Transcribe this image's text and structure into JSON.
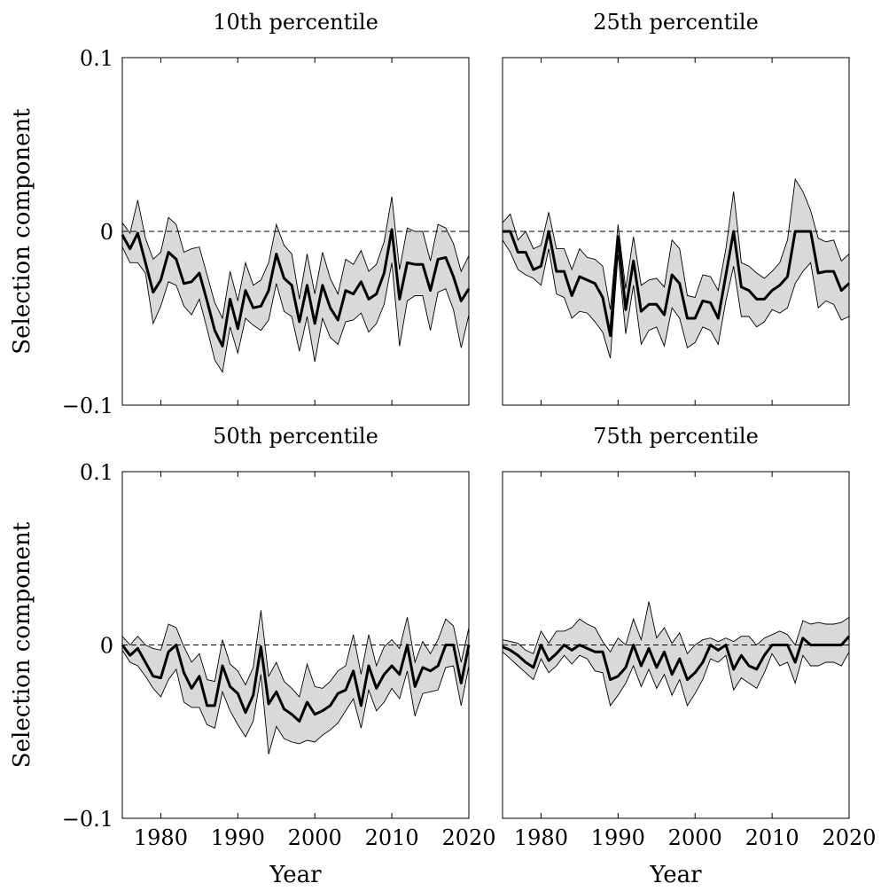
{
  "chart_data": [
    {
      "type": "line",
      "title": "10th percentile",
      "xlabel": "",
      "ylabel": "Selection component",
      "xlim": [
        1975,
        2020
      ],
      "ylim": [
        -0.1,
        0.1
      ],
      "xticks": [
        1980,
        1990,
        2000,
        2010,
        2020
      ],
      "yticks": [
        -0.1,
        0,
        0.1
      ],
      "ytick_labels": [
        "−0.1",
        "0",
        "0.1"
      ],
      "xtick_labels": [],
      "reference_line": 0,
      "x": [
        1975,
        1976,
        1977,
        1978,
        1979,
        1980,
        1981,
        1982,
        1983,
        1984,
        1985,
        1986,
        1987,
        1988,
        1989,
        1990,
        1991,
        1992,
        1993,
        1994,
        1995,
        1996,
        1997,
        1998,
        1999,
        2000,
        2001,
        2002,
        2003,
        2004,
        2005,
        2006,
        2007,
        2008,
        2009,
        2010,
        2011,
        2012,
        2013,
        2014,
        2015,
        2016,
        2017,
        2018,
        2019,
        2020
      ],
      "estimate": [
        -0.002,
        -0.01,
        -0.001,
        -0.018,
        -0.035,
        -0.028,
        -0.012,
        -0.016,
        -0.03,
        -0.029,
        -0.024,
        -0.04,
        -0.057,
        -0.066,
        -0.039,
        -0.056,
        -0.034,
        -0.044,
        -0.043,
        -0.034,
        -0.013,
        -0.027,
        -0.031,
        -0.052,
        -0.031,
        -0.053,
        -0.031,
        -0.044,
        -0.051,
        -0.034,
        -0.036,
        -0.029,
        -0.039,
        -0.036,
        -0.024,
        0.001,
        -0.039,
        -0.018,
        -0.019,
        -0.019,
        -0.034,
        -0.016,
        -0.015,
        -0.026,
        -0.04,
        -0.033
      ],
      "upper": [
        0.005,
        -0.001,
        0.018,
        -0.004,
        -0.016,
        -0.012,
        0.008,
        0.004,
        -0.012,
        -0.01,
        -0.009,
        -0.025,
        -0.041,
        -0.05,
        -0.023,
        -0.04,
        -0.018,
        -0.031,
        -0.028,
        -0.018,
        0.004,
        -0.008,
        -0.013,
        -0.039,
        -0.013,
        -0.036,
        -0.012,
        -0.027,
        -0.036,
        -0.016,
        -0.019,
        -0.011,
        -0.023,
        -0.019,
        -0.006,
        0.02,
        -0.022,
        0.002,
        0,
        0,
        -0.017,
        0.004,
        0.002,
        -0.007,
        -0.023,
        -0.014
      ],
      "lower": [
        -0.009,
        -0.018,
        -0.018,
        -0.024,
        -0.053,
        -0.043,
        -0.029,
        -0.031,
        -0.043,
        -0.048,
        -0.039,
        -0.056,
        -0.074,
        -0.081,
        -0.055,
        -0.07,
        -0.05,
        -0.054,
        -0.057,
        -0.051,
        -0.03,
        -0.046,
        -0.049,
        -0.069,
        -0.049,
        -0.075,
        -0.05,
        -0.061,
        -0.065,
        -0.052,
        -0.051,
        -0.047,
        -0.058,
        -0.053,
        -0.042,
        -0.018,
        -0.066,
        -0.04,
        -0.037,
        -0.037,
        -0.057,
        -0.035,
        -0.033,
        -0.045,
        -0.067,
        -0.048
      ]
    },
    {
      "type": "line",
      "title": "25th percentile",
      "xlabel": "",
      "ylabel": "",
      "xlim": [
        1975,
        2020
      ],
      "ylim": [
        -0.1,
        0.1
      ],
      "xticks": [
        1980,
        1990,
        2000,
        2010,
        2020
      ],
      "yticks": [
        -0.1,
        0,
        0.1
      ],
      "ytick_labels": [],
      "xtick_labels": [],
      "reference_line": 0,
      "x": [
        1975,
        1976,
        1977,
        1978,
        1979,
        1980,
        1981,
        1982,
        1983,
        1984,
        1985,
        1986,
        1987,
        1988,
        1989,
        1990,
        1991,
        1992,
        1993,
        1994,
        1995,
        1996,
        1997,
        1998,
        1999,
        2000,
        2001,
        2002,
        2003,
        2004,
        2005,
        2006,
        2007,
        2008,
        2009,
        2010,
        2011,
        2012,
        2013,
        2014,
        2015,
        2016,
        2017,
        2018,
        2019,
        2020
      ],
      "estimate": [
        0,
        0,
        -0.012,
        -0.012,
        -0.022,
        -0.02,
        0,
        -0.023,
        -0.023,
        -0.037,
        -0.026,
        -0.028,
        -0.03,
        -0.038,
        -0.06,
        -0.003,
        -0.045,
        -0.017,
        -0.046,
        -0.042,
        -0.042,
        -0.048,
        -0.025,
        -0.03,
        -0.05,
        -0.05,
        -0.04,
        -0.041,
        -0.05,
        -0.025,
        0,
        -0.032,
        -0.034,
        -0.039,
        -0.039,
        -0.034,
        -0.031,
        -0.026,
        0,
        0,
        0,
        -0.024,
        -0.023,
        -0.023,
        -0.034,
        -0.03
      ],
      "upper": [
        0.005,
        0.01,
        -0.005,
        0,
        -0.01,
        -0.008,
        0.011,
        -0.01,
        -0.01,
        -0.022,
        -0.01,
        -0.015,
        -0.016,
        -0.02,
        -0.045,
        0.004,
        -0.033,
        -0.003,
        -0.031,
        -0.028,
        -0.027,
        -0.032,
        -0.005,
        -0.01,
        -0.037,
        -0.038,
        -0.025,
        -0.026,
        -0.034,
        -0.01,
        0.023,
        -0.018,
        -0.02,
        -0.024,
        -0.027,
        -0.023,
        -0.018,
        -0.005,
        0.03,
        0.023,
        0.012,
        -0.004,
        -0.006,
        -0.005,
        -0.017,
        -0.013
      ],
      "lower": [
        -0.005,
        -0.012,
        -0.022,
        -0.025,
        -0.027,
        -0.031,
        -0.01,
        -0.036,
        -0.038,
        -0.05,
        -0.046,
        -0.047,
        -0.052,
        -0.058,
        -0.073,
        -0.013,
        -0.059,
        -0.031,
        -0.065,
        -0.057,
        -0.055,
        -0.066,
        -0.044,
        -0.05,
        -0.067,
        -0.064,
        -0.055,
        -0.057,
        -0.065,
        -0.04,
        -0.02,
        -0.049,
        -0.049,
        -0.055,
        -0.052,
        -0.045,
        -0.047,
        -0.044,
        -0.03,
        -0.023,
        -0.018,
        -0.044,
        -0.04,
        -0.042,
        -0.051,
        -0.049
      ]
    },
    {
      "type": "line",
      "title": "50th percentile",
      "xlabel": "Year",
      "ylabel": "Selection component",
      "xlim": [
        1975,
        2020
      ],
      "ylim": [
        -0.1,
        0.1
      ],
      "xticks": [
        1980,
        1990,
        2000,
        2010,
        2020
      ],
      "yticks": [
        -0.1,
        0,
        0.1
      ],
      "ytick_labels": [
        "−0.1",
        "0",
        "0.1"
      ],
      "xtick_labels": [
        "1980",
        "1990",
        "2000",
        "2010",
        "2020"
      ],
      "reference_line": 0,
      "x": [
        1975,
        1976,
        1977,
        1978,
        1979,
        1980,
        1981,
        1982,
        1983,
        1984,
        1985,
        1986,
        1987,
        1988,
        1989,
        1990,
        1991,
        1992,
        1993,
        1994,
        1995,
        1996,
        1997,
        1998,
        1999,
        2000,
        2001,
        2002,
        2003,
        2004,
        2005,
        2006,
        2007,
        2008,
        2009,
        2010,
        2011,
        2012,
        2013,
        2014,
        2015,
        2016,
        2017,
        2018,
        2019,
        2020
      ],
      "estimate": [
        0,
        -0.006,
        -0.002,
        -0.01,
        -0.018,
        -0.019,
        -0.004,
        0,
        -0.016,
        -0.025,
        -0.018,
        -0.035,
        -0.035,
        -0.012,
        -0.024,
        -0.028,
        -0.039,
        -0.029,
        -0.001,
        -0.034,
        -0.027,
        -0.037,
        -0.04,
        -0.044,
        -0.033,
        -0.04,
        -0.038,
        -0.035,
        -0.028,
        -0.026,
        -0.015,
        -0.035,
        -0.012,
        -0.025,
        -0.017,
        -0.012,
        -0.017,
        0,
        -0.024,
        -0.013,
        -0.015,
        -0.012,
        0,
        0,
        -0.022,
        0
      ],
      "upper": [
        0.005,
        0,
        0.005,
        0,
        -0.002,
        -0.003,
        0.012,
        0.01,
        -0.001,
        -0.01,
        -0.005,
        -0.02,
        -0.021,
        0.003,
        -0.011,
        -0.015,
        -0.023,
        -0.013,
        0.02,
        -0.018,
        -0.01,
        -0.021,
        -0.025,
        -0.03,
        -0.011,
        -0.024,
        -0.025,
        -0.021,
        -0.015,
        -0.012,
        0.006,
        -0.017,
        0.006,
        -0.012,
        -0.001,
        0.003,
        -0.002,
        0.016,
        -0.01,
        0.002,
        -0.005,
        0.003,
        0.015,
        0.011,
        -0.01,
        0.01
      ],
      "lower": [
        -0.003,
        -0.01,
        -0.012,
        -0.018,
        -0.025,
        -0.03,
        -0.02,
        -0.014,
        -0.033,
        -0.036,
        -0.036,
        -0.046,
        -0.048,
        -0.027,
        -0.038,
        -0.046,
        -0.053,
        -0.044,
        -0.017,
        -0.063,
        -0.047,
        -0.054,
        -0.056,
        -0.057,
        -0.055,
        -0.056,
        -0.052,
        -0.049,
        -0.045,
        -0.038,
        -0.031,
        -0.048,
        -0.026,
        -0.038,
        -0.033,
        -0.025,
        -0.031,
        -0.015,
        -0.041,
        -0.028,
        -0.027,
        -0.026,
        -0.013,
        -0.012,
        -0.035,
        -0.012
      ]
    },
    {
      "type": "line",
      "title": "75th percentile",
      "xlabel": "Year",
      "ylabel": "",
      "xlim": [
        1975,
        2020
      ],
      "ylim": [
        -0.1,
        0.1
      ],
      "xticks": [
        1980,
        1990,
        2000,
        2010,
        2020
      ],
      "yticks": [
        -0.1,
        0,
        0.1
      ],
      "ytick_labels": [],
      "xtick_labels": [
        "1980",
        "1990",
        "2000",
        "2010",
        "2020"
      ],
      "reference_line": 0,
      "x": [
        1975,
        1976,
        1977,
        1978,
        1979,
        1980,
        1981,
        1982,
        1983,
        1984,
        1985,
        1986,
        1987,
        1988,
        1989,
        1990,
        1991,
        1992,
        1993,
        1994,
        1995,
        1996,
        1997,
        1998,
        1999,
        2000,
        2001,
        2002,
        2003,
        2004,
        2005,
        2006,
        2007,
        2008,
        2009,
        2010,
        2011,
        2012,
        2013,
        2014,
        2015,
        2016,
        2017,
        2018,
        2019,
        2020
      ],
      "estimate": [
        -0.001,
        -0.003,
        -0.006,
        -0.01,
        -0.013,
        0,
        -0.009,
        -0.005,
        0,
        -0.003,
        0,
        -0.002,
        -0.004,
        -0.004,
        -0.02,
        -0.018,
        -0.013,
        0,
        -0.012,
        -0.002,
        -0.013,
        -0.004,
        -0.017,
        -0.008,
        -0.02,
        -0.016,
        -0.01,
        0,
        -0.003,
        0,
        -0.014,
        -0.006,
        -0.012,
        -0.014,
        -0.006,
        0,
        0,
        0,
        -0.01,
        0.004,
        0,
        0,
        0,
        0,
        0,
        0.005
      ],
      "upper": [
        0.003,
        0.002,
        0.001,
        -0.003,
        -0.005,
        0.008,
        0.001,
        0.008,
        0.008,
        0.01,
        0.015,
        0.012,
        0.01,
        0.002,
        -0.004,
        0.004,
        0,
        0.015,
        0.003,
        0.025,
        0.004,
        0.01,
        0.001,
        0.007,
        -0.005,
        0,
        0.003,
        0.004,
        0.002,
        0.004,
        0.002,
        0.005,
        0.005,
        0,
        0.004,
        0.006,
        0.008,
        0.006,
        0,
        0.014,
        0.012,
        0.013,
        0.012,
        0.012,
        0.013,
        0.016
      ],
      "lower": [
        -0.004,
        -0.008,
        -0.012,
        -0.016,
        -0.02,
        -0.008,
        -0.016,
        -0.012,
        -0.006,
        -0.011,
        -0.006,
        -0.008,
        -0.015,
        -0.016,
        -0.035,
        -0.029,
        -0.022,
        -0.012,
        -0.024,
        -0.014,
        -0.025,
        -0.017,
        -0.029,
        -0.02,
        -0.035,
        -0.028,
        -0.02,
        -0.008,
        -0.01,
        -0.006,
        -0.026,
        -0.019,
        -0.022,
        -0.025,
        -0.016,
        -0.005,
        -0.012,
        -0.01,
        -0.022,
        -0.006,
        -0.012,
        -0.012,
        -0.01,
        -0.01,
        -0.012,
        -0.004
      ]
    }
  ]
}
